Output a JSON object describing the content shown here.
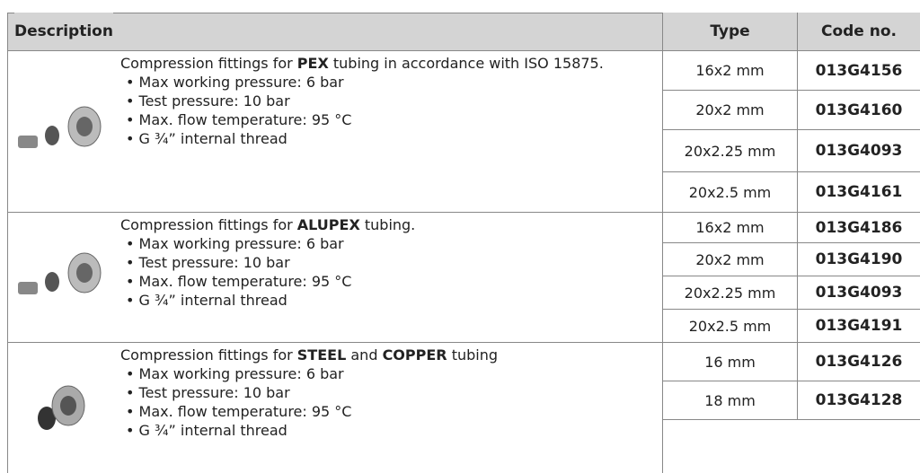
{
  "header": {
    "description": "Description",
    "type": "Type",
    "code": "Code no."
  },
  "groups": [
    {
      "intro": [
        {
          "text": "Compression fittings for "
        },
        {
          "text": "PEX",
          "bold": true
        },
        {
          "text": " tubing in accordance with ISO 15875."
        }
      ],
      "bullets": [
        "• Max working pressure: 6 bar",
        "• Test pressure: 10 bar",
        "• Max. flow temperature: 95 °C",
        "• G ¾” internal thread"
      ],
      "items": [
        {
          "type": "16x2 mm",
          "code": "013G4156"
        },
        {
          "type": "20x2 mm",
          "code": "013G4160"
        },
        {
          "type": "20x2.25 mm",
          "code": "013G4093"
        },
        {
          "type": "20x2.5 mm",
          "code": "013G4161"
        }
      ]
    },
    {
      "intro": [
        {
          "text": "Compression fittings for "
        },
        {
          "text": "ALUPEX",
          "bold": true
        },
        {
          "text": " tubing."
        }
      ],
      "bullets": [
        "• Max working pressure: 6 bar",
        "• Test pressure: 10 bar",
        "• Max. flow temperature: 95 °C",
        "• G ¾” internal thread"
      ],
      "items": [
        {
          "type": "16x2 mm",
          "code": "013G4186"
        },
        {
          "type": "20x2 mm",
          "code": "013G4190"
        },
        {
          "type": "20x2.25 mm",
          "code": "013G4093"
        },
        {
          "type": "20x2.5 mm",
          "code": "013G4191"
        }
      ]
    },
    {
      "intro": [
        {
          "text": "Compression fittings for "
        },
        {
          "text": "STEEL",
          "bold": true
        },
        {
          "text": " and "
        },
        {
          "text": "COPPER",
          "bold": true
        },
        {
          "text": " tubing"
        }
      ],
      "bullets": [
        "• Max working pressure: 6 bar",
        "• Test pressure: 10 bar",
        "• Max. flow temperature: 95 °C",
        "• G ¾” internal thread"
      ],
      "items": [
        {
          "type": "16 mm",
          "code": "013G4126"
        },
        {
          "type": "18 mm",
          "code": "013G4128"
        }
      ]
    }
  ]
}
